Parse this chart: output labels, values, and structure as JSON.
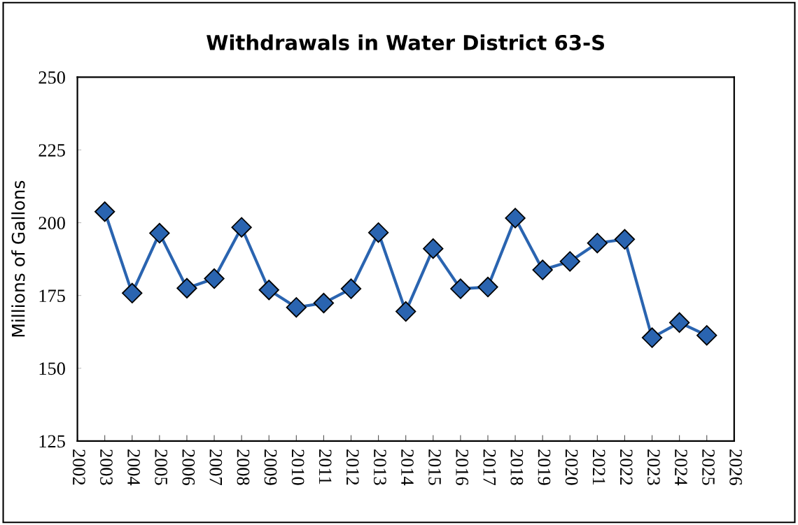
{
  "chart_data": {
    "type": "line",
    "title": "Withdrawals in Water District 63-S",
    "ylabel": "Millions of Gallons",
    "x": [
      2003,
      2004,
      2005,
      2006,
      2007,
      2008,
      2009,
      2010,
      2011,
      2012,
      2013,
      2014,
      2015,
      2016,
      2017,
      2018,
      2019,
      2020,
      2021,
      2022,
      2023,
      2024,
      2025
    ],
    "series": [
      {
        "color": "#2a64b0",
        "values": [
          203.8,
          175.8,
          196.4,
          177.5,
          180.8,
          198.4,
          176.9,
          170.9,
          172.4,
          177.3,
          196.6,
          169.5,
          191.1,
          177.3,
          177.9,
          201.6,
          183.8,
          186.7,
          193.0,
          194.3,
          160.5,
          165.7,
          161.3
        ]
      }
    ],
    "xlim": [
      2002,
      2026
    ],
    "xticks": [
      2002,
      2003,
      2004,
      2005,
      2006,
      2007,
      2008,
      2009,
      2010,
      2011,
      2012,
      2013,
      2014,
      2015,
      2016,
      2017,
      2018,
      2019,
      2020,
      2021,
      2022,
      2023,
      2024,
      2025,
      2026
    ],
    "ylim": [
      125,
      250
    ],
    "yticks": [
      125,
      150,
      175,
      200,
      225,
      250
    ],
    "marker": "diamond",
    "line_style": "solid"
  }
}
